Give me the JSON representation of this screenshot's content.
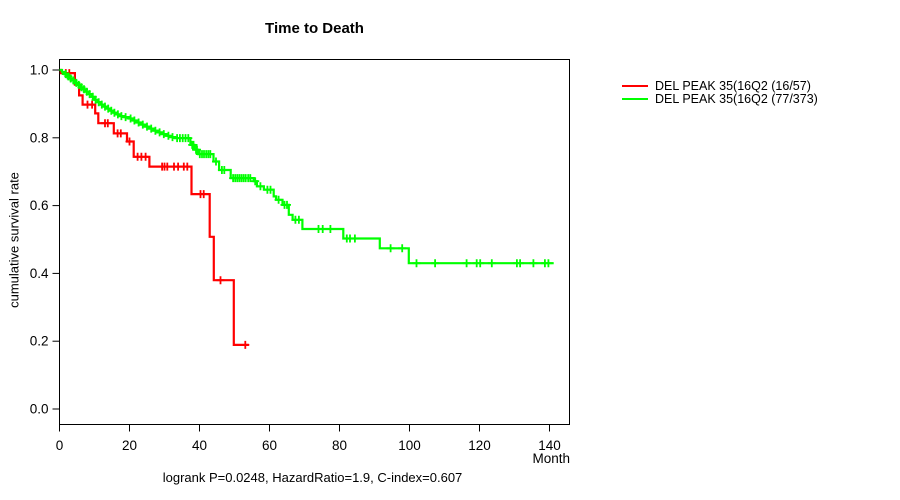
{
  "window": {
    "background": "#ffffff",
    "text_color": "#000000"
  },
  "chart_data": {
    "type": "line",
    "subtype": "kaplan-meier-step-curves",
    "title": "Time to Death",
    "xlabel": "Month",
    "ylabel": "cumulative survival rate",
    "caption": "logrank P=0.0248, HazardRatio=1.9, C-index=0.607",
    "grid": false,
    "legend_position": "right-outside",
    "xlim": [
      0,
      146
    ],
    "ylim": [
      0,
      1.0
    ],
    "xticks": [
      {
        "v": 0,
        "label": "0"
      },
      {
        "v": 20,
        "label": "20"
      },
      {
        "v": 40,
        "label": "40"
      },
      {
        "v": 60,
        "label": "60"
      },
      {
        "v": 80,
        "label": "80"
      },
      {
        "v": 100,
        "label": "100"
      },
      {
        "v": 120,
        "label": "120"
      },
      {
        "v": 140,
        "label": "140"
      }
    ],
    "yticks": [
      {
        "v": 0.0,
        "label": "0.0"
      },
      {
        "v": 0.2,
        "label": "0.2"
      },
      {
        "v": 0.4,
        "label": "0.4"
      },
      {
        "v": 0.6,
        "label": "0.6"
      },
      {
        "v": 0.8,
        "label": "0.8"
      },
      {
        "v": 1.0,
        "label": "1.0"
      }
    ],
    "series": [
      {
        "name": "DEL PEAK 35(16Q2 (16/57)",
        "color": "#ff0000",
        "end_time": 54.1,
        "steps": [
          [
            0,
            1.0
          ],
          [
            0.4,
            0.991
          ],
          [
            4.4,
            0.957
          ],
          [
            5.6,
            0.925
          ],
          [
            6.6,
            0.898
          ],
          [
            10.2,
            0.872
          ],
          [
            11.1,
            0.843
          ],
          [
            15.5,
            0.813
          ],
          [
            19.3,
            0.789
          ],
          [
            21.2,
            0.744
          ],
          [
            25.7,
            0.715
          ],
          [
            37.7,
            0.634
          ],
          [
            42.9,
            0.508
          ],
          [
            44.1,
            0.38
          ],
          [
            49.8,
            0.189
          ]
        ],
        "censor_times": [
          1.8,
          2.8,
          8.0,
          9.3,
          13.0,
          13.8,
          16.6,
          17.5,
          20.0,
          22.3,
          23.4,
          24.6,
          29.3,
          30.0,
          30.8,
          32.7,
          33.9,
          35.5,
          36.5,
          40.3,
          41.2,
          46.0,
          53.1
        ]
      },
      {
        "name": "DEL PEAK 35(16Q2 (77/373)",
        "color": "#00ff00",
        "end_time": 141.2,
        "steps": [
          [
            0,
            1.0
          ],
          [
            0.7,
            0.994
          ],
          [
            1.4,
            0.988
          ],
          [
            2.1,
            0.981
          ],
          [
            2.8,
            0.975
          ],
          [
            3.6,
            0.969
          ],
          [
            4.4,
            0.962
          ],
          [
            5.2,
            0.956
          ],
          [
            6.0,
            0.949
          ],
          [
            6.8,
            0.943
          ],
          [
            7.6,
            0.936
          ],
          [
            8.4,
            0.929
          ],
          [
            9.2,
            0.921
          ],
          [
            10.0,
            0.912
          ],
          [
            10.9,
            0.905
          ],
          [
            11.8,
            0.898
          ],
          [
            12.7,
            0.892
          ],
          [
            13.6,
            0.886
          ],
          [
            14.5,
            0.88
          ],
          [
            15.4,
            0.874
          ],
          [
            16.3,
            0.869
          ],
          [
            17.3,
            0.864
          ],
          [
            18.4,
            0.861
          ],
          [
            19.8,
            0.857
          ],
          [
            21.0,
            0.851
          ],
          [
            22.0,
            0.845
          ],
          [
            23.2,
            0.839
          ],
          [
            24.4,
            0.833
          ],
          [
            25.6,
            0.827
          ],
          [
            26.8,
            0.821
          ],
          [
            28.0,
            0.816
          ],
          [
            29.3,
            0.811
          ],
          [
            30.5,
            0.806
          ],
          [
            31.7,
            0.802
          ],
          [
            33.0,
            0.799
          ],
          [
            37.4,
            0.779
          ],
          [
            38.5,
            0.765
          ],
          [
            39.6,
            0.752
          ],
          [
            44.0,
            0.73
          ],
          [
            45.6,
            0.705
          ],
          [
            48.9,
            0.681
          ],
          [
            55.5,
            0.672
          ],
          [
            56.4,
            0.657
          ],
          [
            58.4,
            0.647
          ],
          [
            61.2,
            0.627
          ],
          [
            61.9,
            0.617
          ],
          [
            63.7,
            0.602
          ],
          [
            65.5,
            0.573
          ],
          [
            66.6,
            0.558
          ],
          [
            69.4,
            0.531
          ],
          [
            81.1,
            0.503
          ],
          [
            91.5,
            0.474
          ],
          [
            99.8,
            0.43
          ]
        ],
        "censor_times": [
          1.8,
          2.5,
          3.2,
          4.0,
          4.8,
          5.5,
          6.3,
          7.0,
          7.8,
          8.6,
          9.5,
          10.3,
          11.2,
          12.1,
          13.0,
          13.9,
          14.8,
          15.7,
          16.7,
          17.7,
          18.9,
          20.3,
          21.4,
          22.6,
          23.8,
          25.0,
          26.2,
          27.4,
          28.6,
          29.8,
          31.1,
          32.3,
          33.6,
          34.4,
          35.2,
          36.0,
          36.8,
          37.9,
          38.3,
          39.0,
          39.3,
          40.1,
          40.7,
          41.3,
          41.9,
          42.5,
          43.1,
          44.7,
          46.4,
          47.1,
          49.6,
          50.2,
          50.8,
          51.4,
          52.0,
          52.6,
          53.2,
          53.9,
          54.5,
          55.9,
          57.4,
          59.4,
          60.3,
          62.6,
          64.3,
          65.0,
          67.4,
          68.4,
          74.0,
          75.2,
          77.4,
          82.1,
          83.0,
          84.4,
          94.6,
          97.9,
          102.0,
          107.3,
          116.3,
          119.2,
          120.2,
          123.5,
          130.7,
          131.6,
          135.4,
          138.7,
          139.7
        ]
      }
    ]
  }
}
